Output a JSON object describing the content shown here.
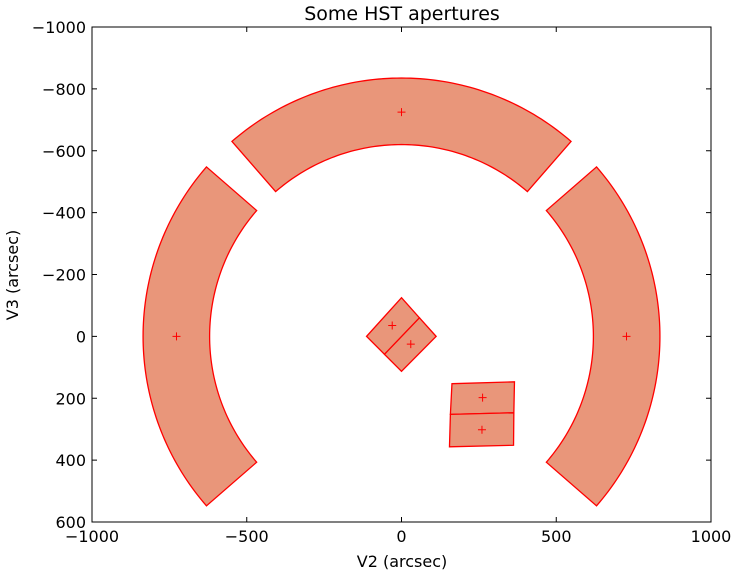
{
  "chart_data": {
    "type": "polygon-plot",
    "title": "Some HST apertures",
    "xlabel": "V2 (arcsec)",
    "ylabel": "V3 (arcsec)",
    "xlim": [
      -1000,
      1000
    ],
    "ylim": [
      -1000,
      600
    ],
    "y_inverted": true,
    "grid": false,
    "x_ticks": [
      -1000,
      -500,
      0,
      500,
      1000
    ],
    "y_ticks": [
      -1000,
      -800,
      -600,
      -400,
      -200,
      0,
      200,
      400,
      600
    ],
    "x_tick_labels": [
      "−1000",
      "−500",
      "0",
      "500",
      "1000"
    ],
    "y_tick_labels": [
      "−1000",
      "−800",
      "−600",
      "−400",
      "−200",
      "0",
      "200",
      "400",
      "600"
    ],
    "colors": {
      "fill": "#e9967a",
      "edge": "#ff0000",
      "marker": "#ff0000"
    },
    "apertures": [
      {
        "id": "arc-top",
        "kind": "annulus-sector",
        "center": [
          0,
          0
        ],
        "r_inner": 620,
        "r_outer": 835,
        "angle_start_deg": 131,
        "angle_end_deg": 49,
        "reference_point": [
          0,
          -725
        ]
      },
      {
        "id": "arc-right",
        "kind": "annulus-sector",
        "center": [
          0,
          0
        ],
        "r_inner": 620,
        "r_outer": 835,
        "angle_start_deg": 41,
        "angle_end_deg": -41,
        "reference_point": [
          727,
          0
        ]
      },
      {
        "id": "arc-left",
        "kind": "annulus-sector",
        "center": [
          0,
          0
        ],
        "r_inner": 620,
        "r_outer": 835,
        "angle_start_deg": 139,
        "angle_end_deg": 221,
        "reference_point": [
          -727,
          0
        ]
      },
      {
        "id": "diamond-upper",
        "kind": "polygon",
        "vertices": [
          [
            0,
            -125
          ],
          [
            58,
            -60
          ],
          [
            -55,
            58
          ],
          [
            -113,
            0
          ]
        ],
        "reference_point": [
          -30,
          -35
        ]
      },
      {
        "id": "diamond-lower",
        "kind": "polygon",
        "vertices": [
          [
            58,
            -60
          ],
          [
            112,
            0
          ],
          [
            0,
            113
          ],
          [
            -55,
            58
          ]
        ],
        "reference_point": [
          30,
          25
        ]
      },
      {
        "id": "box-upper",
        "kind": "polygon",
        "vertices": [
          [
            163,
            153
          ],
          [
            365,
            147
          ],
          [
            363,
            247
          ],
          [
            158,
            252
          ]
        ],
        "reference_point": [
          262,
          198
        ]
      },
      {
        "id": "box-lower",
        "kind": "polygon",
        "vertices": [
          [
            158,
            252
          ],
          [
            363,
            247
          ],
          [
            362,
            352
          ],
          [
            155,
            357
          ]
        ],
        "reference_point": [
          260,
          302
        ]
      }
    ]
  }
}
